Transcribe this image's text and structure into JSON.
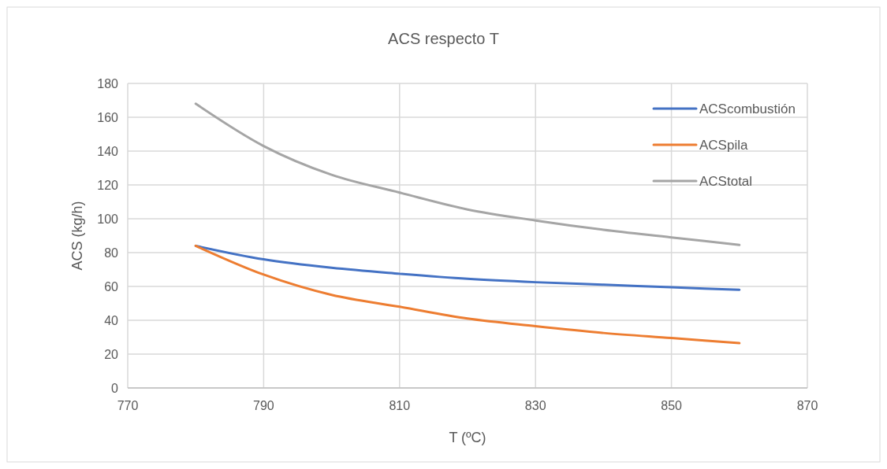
{
  "chart_data": {
    "type": "line",
    "title": "ACS respecto T",
    "xlabel": "T (ºC)",
    "ylabel": "ACS (kg/h)",
    "x": [
      780,
      790,
      800,
      810,
      820,
      830,
      840,
      850,
      860
    ],
    "series": [
      {
        "name": "ACScombustión",
        "color": "#4472c4",
        "values": [
          84,
          76,
          71,
          67.5,
          64.5,
          62.5,
          61,
          59.5,
          58
        ]
      },
      {
        "name": "ACSpila",
        "color": "#ed7d31",
        "values": [
          84,
          67,
          55,
          48,
          41,
          36.5,
          32.5,
          29.5,
          26.5
        ]
      },
      {
        "name": "ACStotal",
        "color": "#a5a5a5",
        "values": [
          168,
          143,
          126,
          115.5,
          105.5,
          99,
          93.5,
          89,
          84.5
        ]
      }
    ],
    "xlim": [
      770,
      870
    ],
    "xticks": [
      770,
      790,
      810,
      830,
      850,
      870
    ],
    "ylim": [
      0,
      180
    ],
    "yticks": [
      0,
      20,
      40,
      60,
      80,
      100,
      120,
      140,
      160,
      180
    ],
    "grid": true,
    "legend": "top right",
    "marker": "none",
    "line_style": "solid"
  }
}
